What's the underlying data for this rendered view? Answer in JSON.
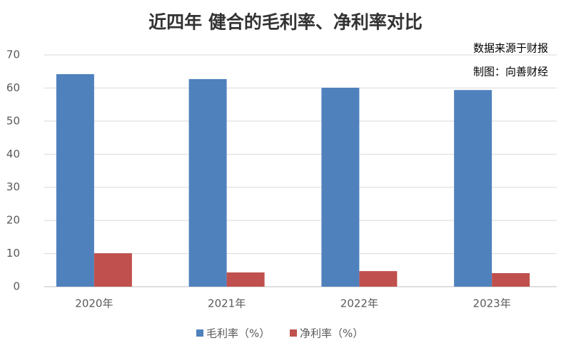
{
  "chart_data": {
    "type": "bar",
    "title": "近四年 健合的毛利率、净利率对比",
    "annotations": [
      "数据来源于财报",
      "制图：向善财经"
    ],
    "categories": [
      "2020年",
      "2021年",
      "2022年",
      "2023年"
    ],
    "series": [
      {
        "name": "毛利率（%）",
        "color": "#4f81bd",
        "values": [
          64.2,
          62.7,
          60.1,
          59.4
        ]
      },
      {
        "name": "净利率（%）",
        "color": "#c0504d",
        "values": [
          10.1,
          4.3,
          4.7,
          4.1
        ]
      }
    ],
    "ylim": [
      0,
      70
    ],
    "yticks": [
      0,
      10,
      20,
      30,
      40,
      50,
      60,
      70
    ],
    "grid": true,
    "legend": "bottom"
  }
}
